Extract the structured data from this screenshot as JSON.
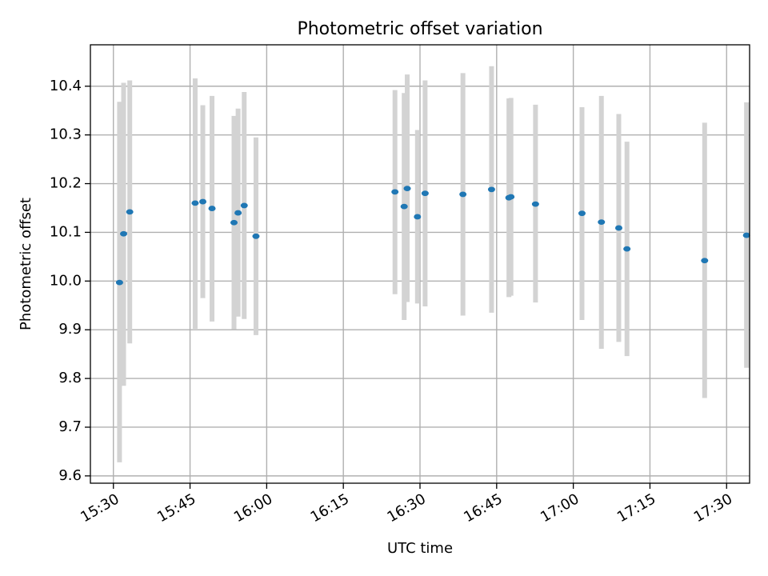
{
  "chart_data": {
    "type": "scatter",
    "title": "Photometric offset variation",
    "xlabel": "UTC time",
    "ylabel": "Photometric offset",
    "x_tick_labels": [
      "15:30",
      "15:45",
      "16:00",
      "16:15",
      "16:30",
      "16:45",
      "17:00",
      "17:15",
      "17:30"
    ],
    "y_tick_labels": [
      "9.6",
      "9.7",
      "9.8",
      "9.9",
      "10.0",
      "10.1",
      "10.2",
      "10.3",
      "10.4"
    ],
    "x_tick_minutes": [
      930,
      945,
      960,
      975,
      990,
      1005,
      1020,
      1035,
      1050
    ],
    "y_ticks": [
      9.6,
      9.7,
      9.8,
      9.9,
      10.0,
      10.1,
      10.2,
      10.3,
      10.4
    ],
    "xlim_minutes": [
      925.5,
      1054.5
    ],
    "ylim": [
      9.585,
      10.485
    ],
    "grid": true,
    "colors": {
      "points": "#1f77b4",
      "errorbars": "#d3d3d3",
      "grid": "#b0b0b0"
    },
    "points": [
      {
        "t": 931.2,
        "y": 9.997,
        "lo": 9.628,
        "hi": 10.368
      },
      {
        "t": 932.0,
        "y": 10.097,
        "lo": 9.785,
        "hi": 10.407
      },
      {
        "t": 933.2,
        "y": 10.142,
        "lo": 9.872,
        "hi": 10.412
      },
      {
        "t": 946.0,
        "y": 10.16,
        "lo": 9.902,
        "hi": 10.416
      },
      {
        "t": 947.5,
        "y": 10.163,
        "lo": 9.965,
        "hi": 10.361
      },
      {
        "t": 949.3,
        "y": 10.149,
        "lo": 9.917,
        "hi": 10.38
      },
      {
        "t": 953.6,
        "y": 10.12,
        "lo": 9.901,
        "hi": 10.339
      },
      {
        "t": 954.4,
        "y": 10.14,
        "lo": 9.927,
        "hi": 10.354
      },
      {
        "t": 955.6,
        "y": 10.155,
        "lo": 9.922,
        "hi": 10.388
      },
      {
        "t": 957.9,
        "y": 10.092,
        "lo": 9.889,
        "hi": 10.295
      },
      {
        "t": 985.1,
        "y": 10.183,
        "lo": 9.973,
        "hi": 10.392
      },
      {
        "t": 986.9,
        "y": 10.153,
        "lo": 9.92,
        "hi": 10.386
      },
      {
        "t": 987.5,
        "y": 10.19,
        "lo": 9.957,
        "hi": 10.424
      },
      {
        "t": 989.5,
        "y": 10.132,
        "lo": 9.954,
        "hi": 10.31
      },
      {
        "t": 991.0,
        "y": 10.18,
        "lo": 9.948,
        "hi": 10.412
      },
      {
        "t": 998.4,
        "y": 10.178,
        "lo": 9.929,
        "hi": 10.427
      },
      {
        "t": 1004.0,
        "y": 10.188,
        "lo": 9.935,
        "hi": 10.441
      },
      {
        "t": 1007.4,
        "y": 10.171,
        "lo": 9.967,
        "hi": 10.375
      },
      {
        "t": 1007.8,
        "y": 10.173,
        "lo": 9.97,
        "hi": 10.376
      },
      {
        "t": 1012.6,
        "y": 10.158,
        "lo": 9.956,
        "hi": 10.362
      },
      {
        "t": 1021.7,
        "y": 10.139,
        "lo": 9.92,
        "hi": 10.357
      },
      {
        "t": 1025.5,
        "y": 10.121,
        "lo": 9.861,
        "hi": 10.38
      },
      {
        "t": 1028.9,
        "y": 10.109,
        "lo": 9.875,
        "hi": 10.343
      },
      {
        "t": 1030.5,
        "y": 10.066,
        "lo": 9.846,
        "hi": 10.286
      },
      {
        "t": 1045.7,
        "y": 10.042,
        "lo": 9.76,
        "hi": 10.325
      },
      {
        "t": 1053.9,
        "y": 10.094,
        "lo": 9.822,
        "hi": 10.367
      }
    ]
  }
}
